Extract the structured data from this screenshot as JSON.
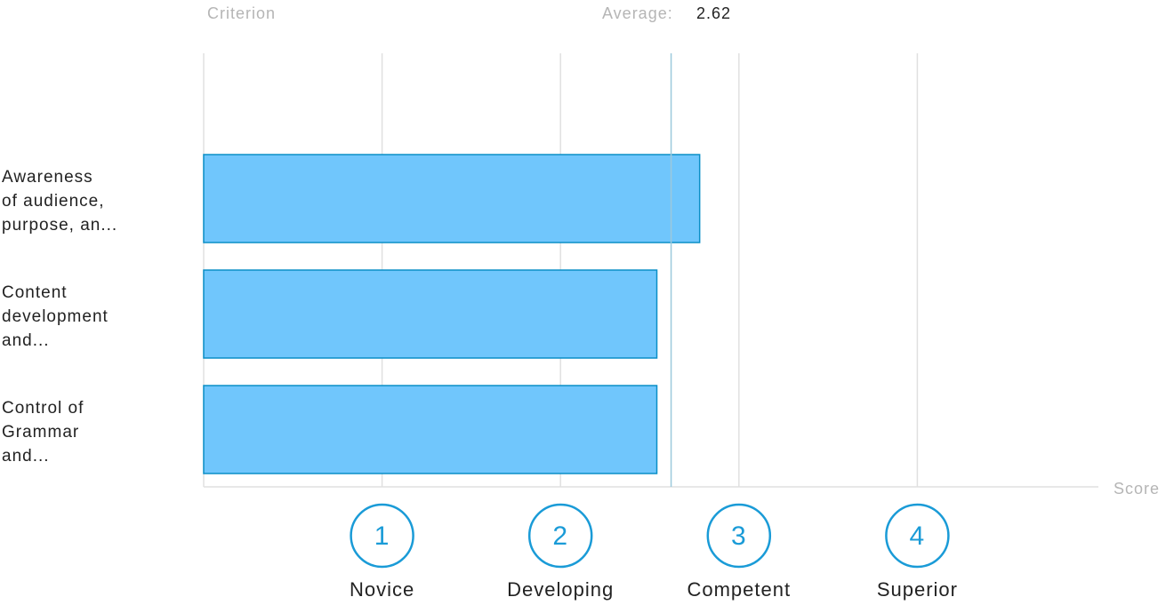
{
  "chart_data": {
    "type": "bar",
    "orientation": "horizontal",
    "header_left": "Criterion",
    "average_label": "Average:",
    "average": 2.62,
    "x_label": "Score",
    "categories": [
      [
        "Awareness",
        "of audience,",
        "purpose, an..."
      ],
      [
        "Content",
        "development",
        "and..."
      ],
      [
        "Control of",
        "Grammar",
        "and..."
      ]
    ],
    "values": [
      2.78,
      2.54,
      2.54
    ],
    "color": "#70c6fc",
    "edge_color": "#0a8fc7",
    "xlim": [
      0,
      5
    ],
    "xticks": [
      1,
      2,
      3,
      4
    ],
    "tick_names": [
      "Novice",
      "Developing",
      "Competent",
      "Superior"
    ],
    "grid": true
  }
}
